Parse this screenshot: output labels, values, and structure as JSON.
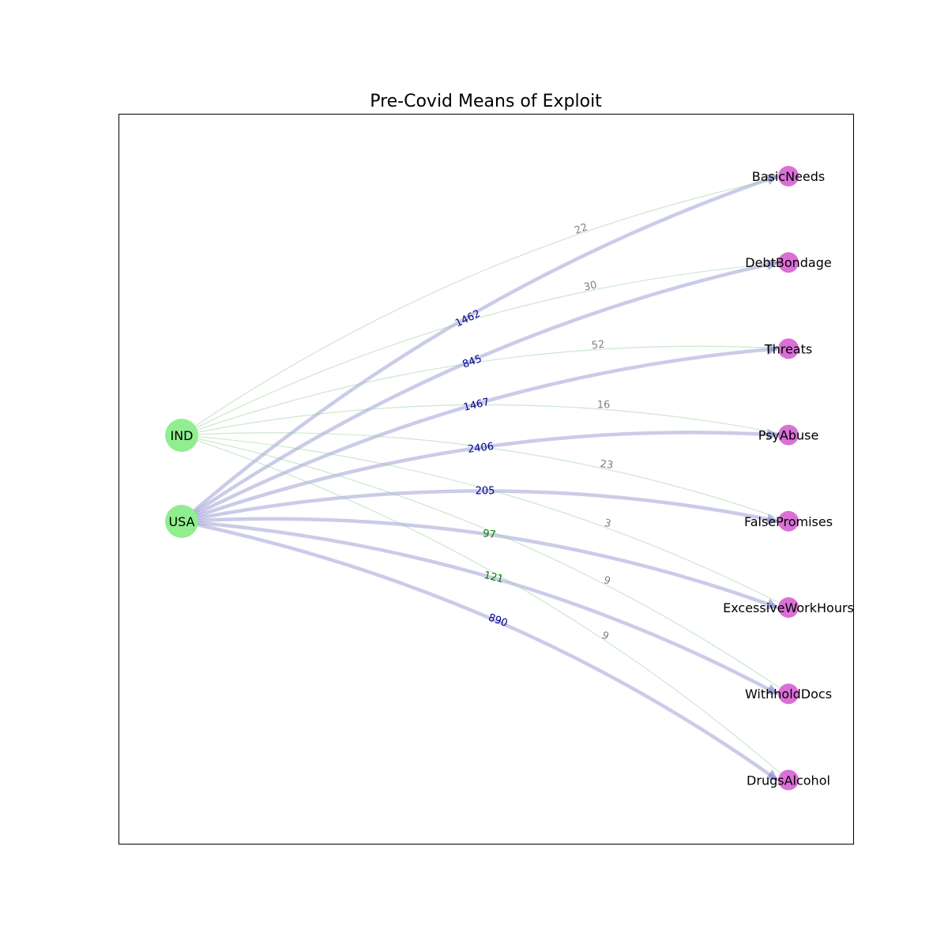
{
  "chart_data": {
    "type": "network",
    "title": "Pre-Covid Means of Exploit",
    "colors": {
      "source_node": "#90ee90",
      "target_node": "#da70d6",
      "usa_edge": "#7777c4",
      "ind_edge": "#8fcc8f",
      "usa_label": "#00008b",
      "ind_label": "#808080",
      "ind_label_alt": "#008000"
    },
    "sources": [
      "IND",
      "USA"
    ],
    "targets": [
      "BasicNeeds",
      "DebtBondage",
      "Threats",
      "PsyAbuse",
      "FalsePromises",
      "ExcessiveWorkHours",
      "WithholdDocs",
      "DrugsAlcohol"
    ],
    "edges": [
      {
        "source": "USA",
        "target": "BasicNeeds",
        "value": 1462
      },
      {
        "source": "USA",
        "target": "DebtBondage",
        "value": 845
      },
      {
        "source": "USA",
        "target": "Threats",
        "value": 1467
      },
      {
        "source": "USA",
        "target": "PsyAbuse",
        "value": 2406
      },
      {
        "source": "USA",
        "target": "FalsePromises",
        "value": 205
      },
      {
        "source": "USA",
        "target": "ExcessiveWorkHours",
        "value": 97
      },
      {
        "source": "USA",
        "target": "WithholdDocs",
        "value": 121
      },
      {
        "source": "USA",
        "target": "DrugsAlcohol",
        "value": 890
      },
      {
        "source": "IND",
        "target": "BasicNeeds",
        "value": 22
      },
      {
        "source": "IND",
        "target": "DebtBondage",
        "value": 30
      },
      {
        "source": "IND",
        "target": "Threats",
        "value": 52
      },
      {
        "source": "IND",
        "target": "PsyAbuse",
        "value": 16
      },
      {
        "source": "IND",
        "target": "FalsePromises",
        "value": 23
      },
      {
        "source": "IND",
        "target": "ExcessiveWorkHours",
        "value": 3
      },
      {
        "source": "IND",
        "target": "WithholdDocs",
        "value": 9
      },
      {
        "source": "IND",
        "target": "DrugsAlcohol",
        "value": 9
      }
    ]
  }
}
